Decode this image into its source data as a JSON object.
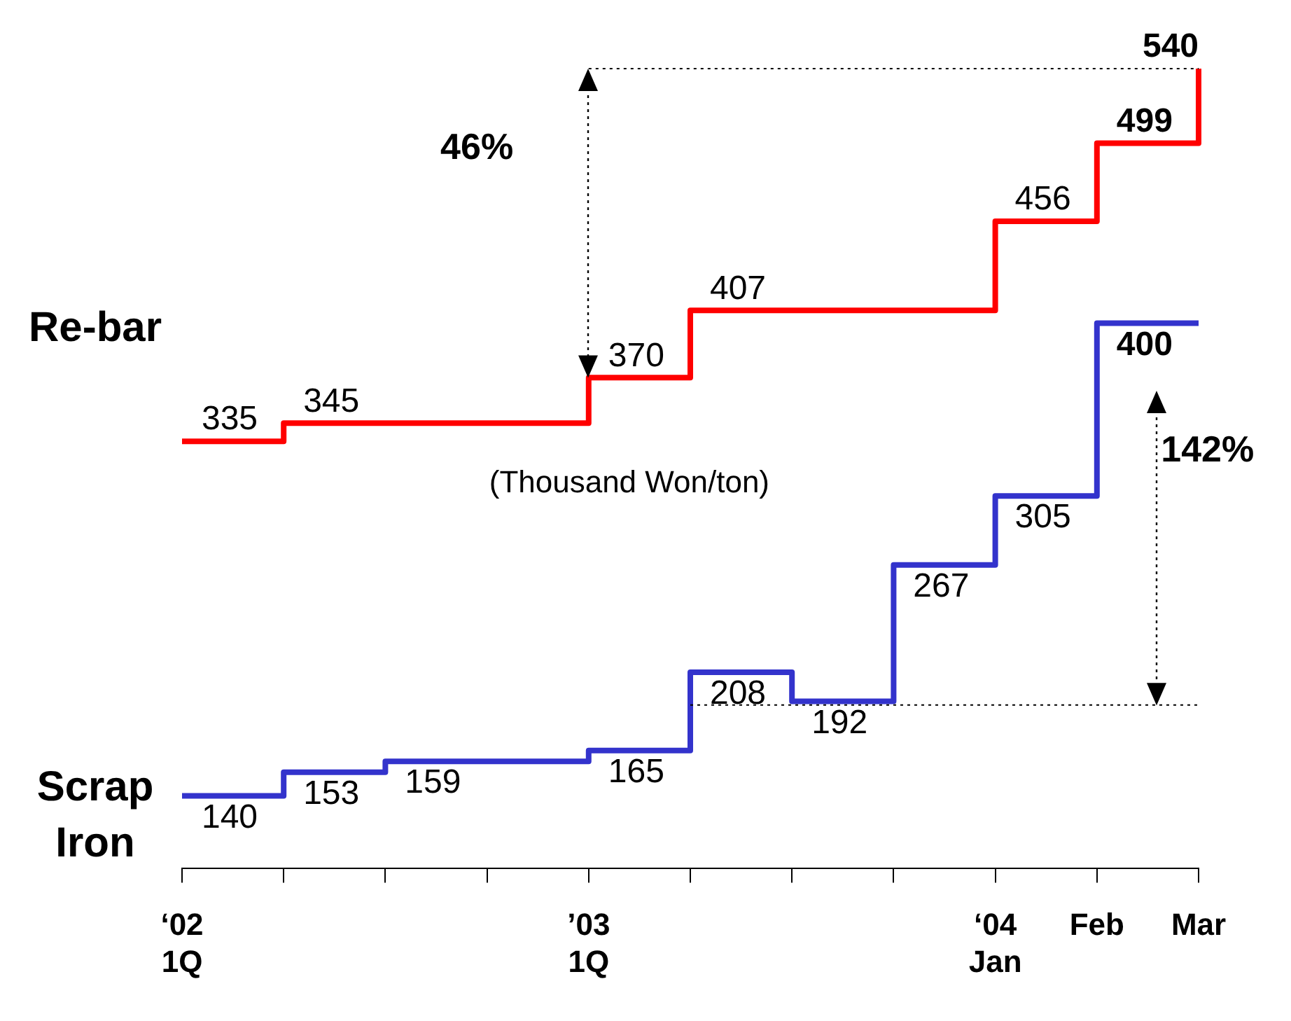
{
  "chart_data": {
    "type": "step",
    "categories": [
      "‘02\n1Q",
      null,
      null,
      null,
      "’03\n1Q",
      null,
      null,
      null,
      "‘04\nJan",
      "Feb",
      "Mar"
    ],
    "series": [
      {
        "name": "Re-bar",
        "color": "#ff0000",
        "values": [
          335,
          345,
          345,
          345,
          370,
          407,
          407,
          407,
          456,
          499,
          540
        ],
        "value_labels": [
          "335",
          "345",
          null,
          null,
          "370",
          "407",
          null,
          null,
          "456",
          "499",
          "540"
        ]
      },
      {
        "name": "Scrap\nIron",
        "color": "#3333cc",
        "values": [
          140,
          153,
          159,
          159,
          165,
          208,
          192,
          267,
          305,
          400,
          400
        ],
        "value_labels": [
          "140",
          "153",
          "159",
          null,
          "165",
          "208",
          "192",
          "267",
          "305",
          "400",
          null
        ]
      }
    ],
    "tick_labels": "x",
    "ref_lines": [
      {
        "axis": "y",
        "value": 540,
        "line_style": "dotted",
        "color": "#000000"
      },
      {
        "axis": "y",
        "value": 190,
        "line_style": "dotted",
        "color": "#000000"
      }
    ],
    "annotations": [
      "46%",
      "(Thousand Won/ton)",
      "142%"
    ]
  }
}
